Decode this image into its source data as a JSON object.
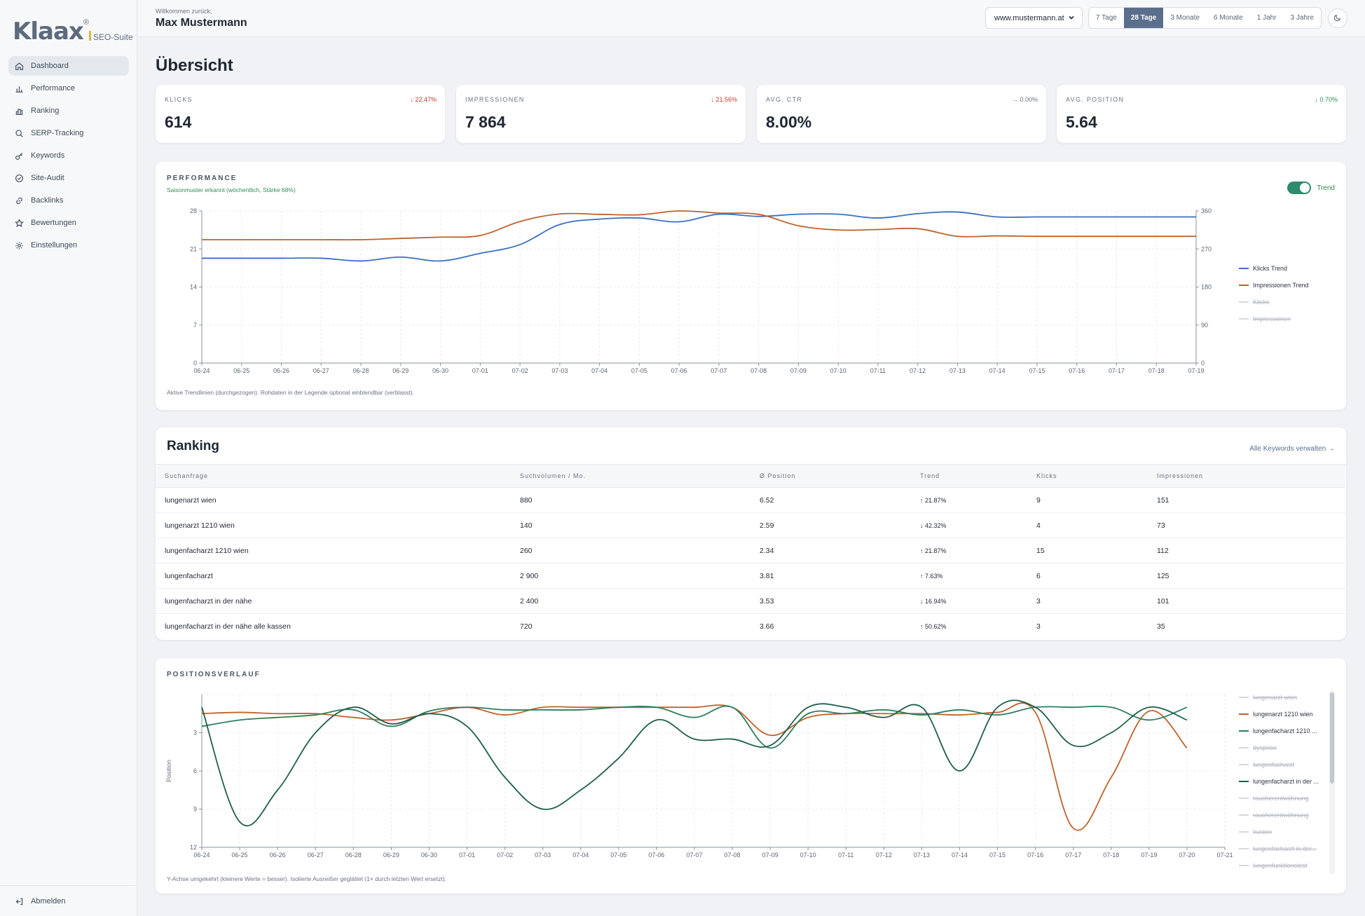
{
  "brand": {
    "name": "Klaax",
    "reg": "®",
    "suite": "SEO-Suite"
  },
  "sidebar": {
    "items": [
      {
        "label": "Dashboard",
        "icon": "home-icon",
        "active": true
      },
      {
        "label": "Performance",
        "icon": "bar-chart-icon"
      },
      {
        "label": "Ranking",
        "icon": "ranking-icon"
      },
      {
        "label": "SERP-Tracking",
        "icon": "search-icon"
      },
      {
        "label": "Keywords",
        "icon": "key-icon"
      },
      {
        "label": "Site-Audit",
        "icon": "check-circle-icon"
      },
      {
        "label": "Backlinks",
        "icon": "link-icon"
      },
      {
        "label": "Bewertungen",
        "icon": "star-icon"
      },
      {
        "label": "Einstellungen",
        "icon": "gear-icon"
      }
    ],
    "logout": "Abmelden"
  },
  "header": {
    "welcome": "Willkommen zurück,",
    "user": "Max Mustermann",
    "site": "www.mustermann.at",
    "ranges": [
      "7 Tage",
      "28 Tage",
      "3 Monate",
      "6 Monate",
      "1 Jahr",
      "3 Jahre"
    ],
    "active_range": "28 Tage"
  },
  "page_title": "Übersicht",
  "kpis": [
    {
      "label": "KLICKS",
      "delta": "↓ 22.47%",
      "tone": "red",
      "value": "614"
    },
    {
      "label": "IMPRESSIONEN",
      "delta": "↓ 21.56%",
      "tone": "red",
      "value": "7 864"
    },
    {
      "label": "AVG. CTR",
      "delta": "→ 0.00%",
      "tone": "grey",
      "value": "8.00%"
    },
    {
      "label": "AVG. POSITION",
      "delta": "↓ 0.70%",
      "tone": "green",
      "value": "5.64"
    }
  ],
  "performance": {
    "title": "PERFORMANCE",
    "season_note": "Saisonmuster erkannt (wöchentlich, Stärke 68%)",
    "toggle_label": "Trend",
    "footnote": "Aktive Trendlinien (durchgezogen). Rohdaten in der Legende optional einblendbar (verblasst).",
    "legend": [
      {
        "label": "Klicks Trend",
        "color": "#3a6fc4",
        "active": true
      },
      {
        "label": "Impressionen Trend",
        "color": "#c0622b",
        "active": true
      },
      {
        "label": "Klicks",
        "active": false
      },
      {
        "label": "Impressionen",
        "active": false
      }
    ]
  },
  "chart_data": [
    {
      "type": "line",
      "x": [
        "06-24",
        "06-25",
        "06-26",
        "06-27",
        "06-28",
        "06-29",
        "06-30",
        "07-01",
        "07-02",
        "07-03",
        "07-04",
        "07-05",
        "07-06",
        "07-07",
        "07-08",
        "07-09",
        "07-10",
        "07-11",
        "07-12",
        "07-13",
        "07-14",
        "07-15",
        "07-16",
        "07-17",
        "07-18",
        "07-19"
      ],
      "y_left_ticks": [
        0,
        7,
        14,
        21,
        28
      ],
      "y_right_ticks": [
        0,
        90,
        180,
        270,
        360
      ],
      "ylim_left": [
        0,
        28
      ],
      "ylim_right": [
        0,
        360
      ],
      "series": [
        {
          "name": "Klicks Trend",
          "axis": "left",
          "color": "#3a6fc4",
          "values": [
            19.3,
            19.3,
            19.3,
            19.3,
            18.8,
            19.5,
            18.8,
            20.2,
            21.8,
            25.5,
            26.5,
            26.7,
            26.0,
            27.4,
            27.0,
            27.4,
            27.4,
            26.7,
            27.5,
            27.8,
            26.9,
            26.9,
            26.9,
            26.9,
            26.9,
            26.9
          ]
        },
        {
          "name": "Impressionen Trend",
          "axis": "right",
          "color": "#c0622b",
          "values": [
            292,
            292,
            292,
            292,
            292,
            295,
            298,
            302,
            335,
            353,
            352,
            351,
            360,
            355,
            352,
            325,
            315,
            316,
            318,
            300,
            301,
            300,
            300,
            300,
            300,
            300
          ]
        }
      ],
      "grid": true,
      "legend_position": "right"
    },
    {
      "type": "line",
      "title": "POSITIONSVERLAUF",
      "x": [
        "06-24",
        "06-25",
        "06-26",
        "06-27",
        "06-28",
        "06-29",
        "06-30",
        "07-01",
        "07-02",
        "07-03",
        "07-04",
        "07-05",
        "07-06",
        "07-07",
        "07-08",
        "07-09",
        "07-10",
        "07-11",
        "07-12",
        "07-13",
        "07-14",
        "07-15",
        "07-16",
        "07-17",
        "07-18",
        "07-19",
        "07-20",
        "07-21"
      ],
      "ylabel": "Position",
      "y_ticks": [
        3,
        6,
        9,
        12
      ],
      "ylim": [
        12,
        0
      ],
      "inverted": true,
      "series": [
        {
          "name": "lungenarzt 1210 wien",
          "color": "#c0622b",
          "values": [
            1.5,
            1.4,
            1.5,
            1.5,
            1.8,
            2.0,
            1.5,
            1.0,
            1.6,
            1.0,
            1.0,
            1.0,
            1.0,
            1.0,
            1.0,
            3.2,
            1.8,
            1.5,
            1.5,
            1.5,
            1.6,
            1.4,
            1.4,
            10.5,
            6.5,
            1.3,
            4.2,
            null
          ]
        },
        {
          "name": "lungenfacharzt 1210 ...",
          "color": "#2e7d5f",
          "values": [
            2.5,
            2.0,
            1.8,
            1.6,
            1.2,
            2.5,
            1.3,
            1.0,
            1.2,
            1.2,
            1.2,
            1.0,
            1.0,
            1.8,
            1.0,
            4.2,
            1.5,
            1.5,
            1.2,
            1.6,
            1.2,
            1.6,
            1.0,
            1.0,
            1.0,
            2.0,
            1.0,
            null
          ]
        },
        {
          "name": "lungenfacharzt in der ...",
          "color": "#1e5e4a",
          "values": [
            1.0,
            10.0,
            7.5,
            3.0,
            1.0,
            2.3,
            1.5,
            2.5,
            6.5,
            9.0,
            7.5,
            5.0,
            2.0,
            3.5,
            3.5,
            4.0,
            1.0,
            1.0,
            1.8,
            1.0,
            6.0,
            1.0,
            1.0,
            4.0,
            3.0,
            1.0,
            2.0,
            null
          ]
        }
      ],
      "grid": true,
      "legend_position": "right"
    }
  ],
  "ranking": {
    "title": "Ranking",
    "link": "Alle Keywords verwalten →",
    "columns": [
      "Suchanfrage",
      "Suchvolumen / Mo.",
      "Ø Position",
      "Trend",
      "Klicks",
      "Impressionen"
    ],
    "rows": [
      {
        "query": "lungenarzt wien",
        "volume": "880",
        "pos": "6.52",
        "trend": "↑ 21.87%",
        "tone": "red",
        "clicks": "9",
        "impr": "151"
      },
      {
        "query": "lungenarzt 1210 wien",
        "volume": "140",
        "pos": "2.59",
        "trend": "↓ 42.32%",
        "tone": "green",
        "clicks": "4",
        "impr": "73"
      },
      {
        "query": "lungenfacharzt 1210 wien",
        "volume": "260",
        "pos": "2.34",
        "trend": "↑ 21.87%",
        "tone": "red",
        "clicks": "15",
        "impr": "112"
      },
      {
        "query": "lungenfacharzt",
        "volume": "2 900",
        "pos": "3.81",
        "trend": "↑ 7.63%",
        "tone": "red",
        "clicks": "6",
        "impr": "125"
      },
      {
        "query": "lungenfacharzt in der nähe",
        "volume": "2 400",
        "pos": "3.53",
        "trend": "↓ 16.94%",
        "tone": "green",
        "clicks": "3",
        "impr": "101"
      },
      {
        "query": "lungenfacharzt in der nähe alle kassen",
        "volume": "720",
        "pos": "3.66",
        "trend": "↑ 50.62%",
        "tone": "red",
        "clicks": "3",
        "impr": "35"
      }
    ]
  },
  "positions": {
    "title": "POSITIONSVERLAUF",
    "ylabel": "Position",
    "footnote": "Y-Achse umgekehrt (kleinere Werte = besser). Isolierte Ausreißer geglättet (1× durch letzten Wert ersetzt).",
    "legend": [
      {
        "label": "lungenarzt wien",
        "active": false
      },
      {
        "label": "lungenarzt 1210 wien",
        "color": "#c0622b",
        "active": true
      },
      {
        "label": "lungenfacharzt 1210 ...",
        "color": "#2e7d5f",
        "active": true
      },
      {
        "label": "dyspnoe",
        "active": false
      },
      {
        "label": "lungenfacharzt",
        "active": false
      },
      {
        "label": "lungenfacharzt in der ...",
        "color": "#1e5e4a",
        "active": true
      },
      {
        "label": "raucherentwöhnung",
        "active": false
      },
      {
        "label": "raucherentwöhnung",
        "active": false
      },
      {
        "label": "husten",
        "active": false
      },
      {
        "label": "lungenfacharzt in der...",
        "active": false
      },
      {
        "label": "lungenfunktionstest",
        "active": false
      }
    ]
  }
}
